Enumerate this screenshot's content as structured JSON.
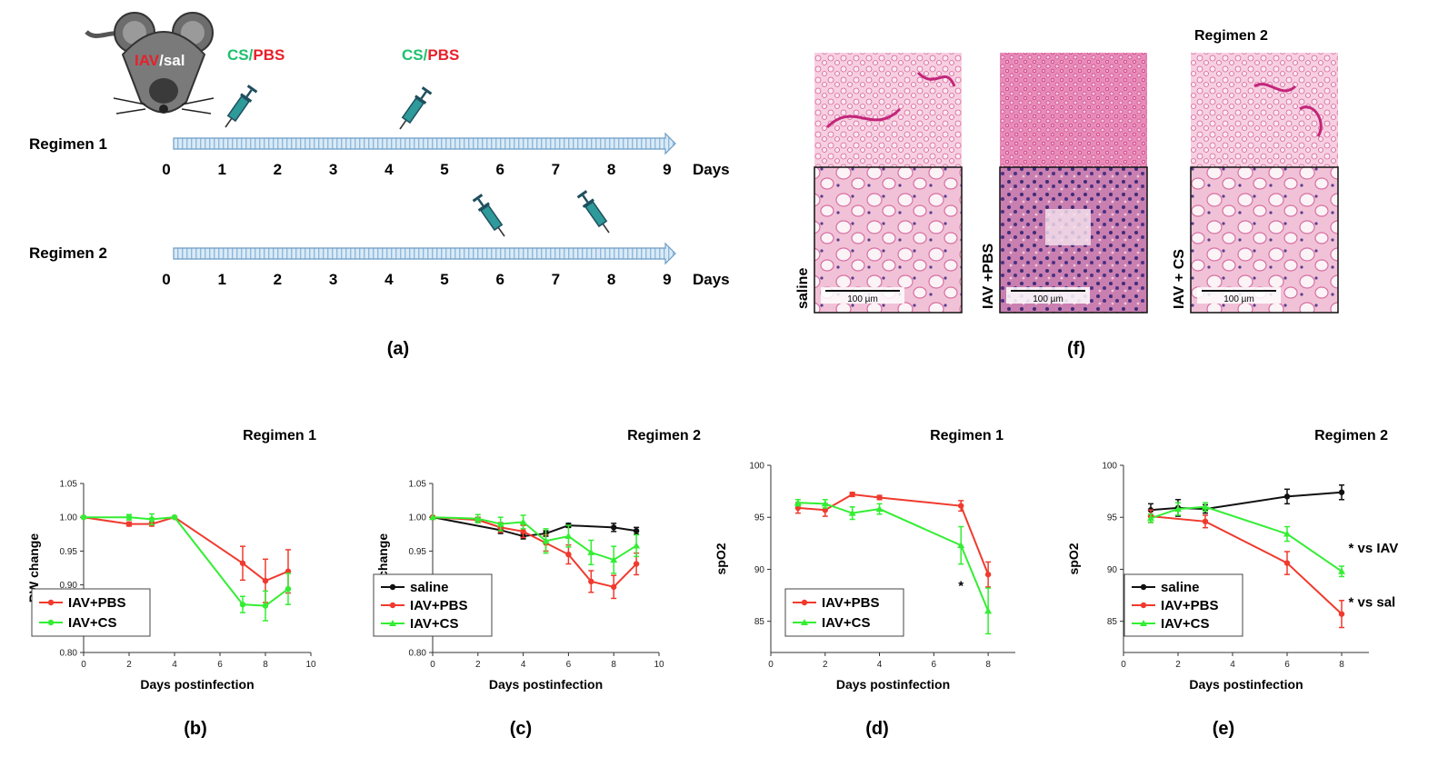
{
  "panel_a": {
    "label": "(a)",
    "mouse_label_iav": "IAV",
    "mouse_label_sep": "/",
    "mouse_label_sal": "sal",
    "inj_label_cs": "CS",
    "inj_label_sep": "/",
    "inj_label_pbs": "PBS",
    "regimen1": "Regimen 1",
    "regimen2": "Regimen 2",
    "days": [
      "0",
      "1",
      "2",
      "3",
      "4",
      "5",
      "6",
      "7",
      "8",
      "9"
    ],
    "days_unit": "Days",
    "colors": {
      "iav": "#e8202a",
      "cs": "#1ec06e",
      "pbs": "#e8202a",
      "arrow": "#cfe3f3"
    }
  },
  "panel_f": {
    "label": "(f)",
    "title": "Regimen 2",
    "samples": [
      "saline",
      "IAV +PBS",
      "IAV + CS"
    ],
    "scale_bar": "100 µm"
  },
  "chart_data": [
    {
      "id": "b",
      "type": "line",
      "panel_label": "(b)",
      "title": "Regimen 1",
      "xlabel": "Days postinfection",
      "ylabel": "BW change",
      "xlim": [
        0,
        10
      ],
      "ylim": [
        0.8,
        1.05
      ],
      "xticks": [
        "0",
        "2",
        "4",
        "6",
        "8",
        "10"
      ],
      "yticks": [
        "0.80",
        "0.85",
        "0.90",
        "0.95",
        "1.00",
        "1.05"
      ],
      "series": [
        {
          "name": "IAV+PBS",
          "color": "#f03a2e",
          "marker": "circle",
          "x": [
            0,
            2,
            3,
            4,
            7,
            8,
            9
          ],
          "y": [
            1.0,
            0.99,
            0.99,
            1.0,
            0.932,
            0.906,
            0.92
          ],
          "err": [
            0,
            0.003,
            0.003,
            0,
            0.025,
            0.032,
            0.032
          ]
        },
        {
          "name": "IAV+CS",
          "color": "#33ee33",
          "marker": "circle",
          "x": [
            0,
            2,
            3,
            4,
            7,
            8,
            9
          ],
          "y": [
            1.0,
            1.0,
            0.997,
            1.0,
            0.871,
            0.869,
            0.894
          ],
          "err": [
            0,
            0.004,
            0.008,
            0,
            0.012,
            0.022,
            0.023
          ]
        }
      ]
    },
    {
      "id": "c",
      "type": "line",
      "panel_label": "(c)",
      "title": "Regimen 2",
      "xlabel": "Days postinfection",
      "ylabel": "BW change",
      "xlim": [
        0,
        10
      ],
      "ylim": [
        0.8,
        1.05
      ],
      "xticks": [
        "0",
        "2",
        "4",
        "6",
        "8",
        "10"
      ],
      "yticks": [
        "0.80",
        "0.85",
        "0.90",
        "0.95",
        "1.00",
        "1.05"
      ],
      "series": [
        {
          "name": "saline",
          "color": "#111111",
          "marker": "circle",
          "x": [
            0,
            3,
            4,
            5,
            6,
            8,
            9
          ],
          "y": [
            1.0,
            0.981,
            0.972,
            0.976,
            0.988,
            0.985,
            0.98
          ],
          "err": [
            0,
            0.005,
            0.004,
            0.004,
            0.003,
            0.006,
            0.005
          ]
        },
        {
          "name": "IAV+PBS",
          "color": "#f03a2e",
          "marker": "circle",
          "x": [
            0,
            2,
            3,
            4,
            5,
            6,
            7,
            8,
            9
          ],
          "y": [
            1.0,
            0.996,
            0.985,
            0.979,
            0.962,
            0.945,
            0.905,
            0.897,
            0.931
          ],
          "err": [
            0,
            0.004,
            0.007,
            0.009,
            0.012,
            0.014,
            0.016,
            0.017,
            0.016
          ]
        },
        {
          "name": "IAV+CS",
          "color": "#33ee33",
          "marker": "triangle",
          "x": [
            0,
            2,
            3,
            4,
            5,
            6,
            7,
            8,
            9
          ],
          "y": [
            1.0,
            0.998,
            0.99,
            0.993,
            0.965,
            0.972,
            0.948,
            0.937,
            0.958
          ],
          "err": [
            0,
            0.006,
            0.01,
            0.01,
            0.018,
            0.016,
            0.018,
            0.02,
            0.016
          ]
        }
      ]
    },
    {
      "id": "d",
      "type": "line",
      "panel_label": "(d)",
      "title": "Regimen 1",
      "xlabel": "Days postinfection",
      "ylabel": "spO2",
      "xlim": [
        0,
        9
      ],
      "ylim": [
        82,
        100
      ],
      "xticks": [
        "0",
        "2",
        "4",
        "6",
        "8"
      ],
      "yticks": [
        "85",
        "90",
        "95",
        "100"
      ],
      "annotations": [
        {
          "text": "*",
          "x": 7,
          "y": 88
        }
      ],
      "series": [
        {
          "name": "IAV+PBS",
          "color": "#f03a2e",
          "marker": "circle",
          "x": [
            1,
            2,
            3,
            4,
            7,
            8
          ],
          "y": [
            95.9,
            95.7,
            97.2,
            96.9,
            96.1,
            89.5
          ],
          "err": [
            0.5,
            0.6,
            0.2,
            0.2,
            0.5,
            1.2
          ]
        },
        {
          "name": "IAV+CS",
          "color": "#33ee33",
          "marker": "triangle",
          "x": [
            1,
            2,
            3,
            4,
            7,
            8
          ],
          "y": [
            96.4,
            96.3,
            95.4,
            95.8,
            92.3,
            86.0
          ],
          "err": [
            0.3,
            0.4,
            0.6,
            0.5,
            1.8,
            2.2
          ]
        }
      ]
    },
    {
      "id": "e",
      "type": "line",
      "panel_label": "(e)",
      "title": "Regimen 2",
      "xlabel": "Days postinfection",
      "ylabel": "spO2",
      "xlim": [
        0,
        9
      ],
      "ylim": [
        82,
        100
      ],
      "xticks": [
        "0",
        "2",
        "4",
        "6",
        "8"
      ],
      "yticks": [
        "85",
        "90",
        "95",
        "100"
      ],
      "annotations": [
        {
          "text": "* vs IAV",
          "x": 8.25,
          "y": 91.6
        },
        {
          "text": "* vs sal",
          "x": 8.25,
          "y": 86.4
        }
      ],
      "series": [
        {
          "name": "saline",
          "color": "#111111",
          "marker": "circle",
          "x": [
            1,
            2,
            3,
            6,
            8
          ],
          "y": [
            95.7,
            95.9,
            95.8,
            97.0,
            97.4
          ],
          "err": [
            0.6,
            0.8,
            0.4,
            0.7,
            0.7
          ]
        },
        {
          "name": "IAV+PBS",
          "color": "#f03a2e",
          "marker": "circle",
          "x": [
            1,
            3,
            6,
            8
          ],
          "y": [
            95.1,
            94.6,
            90.6,
            85.7
          ],
          "err": [
            0.6,
            0.6,
            1.1,
            1.3
          ]
        },
        {
          "name": "IAV+CS",
          "color": "#33ee33",
          "marker": "triangle",
          "x": [
            1,
            2,
            3,
            6,
            8
          ],
          "y": [
            94.9,
            95.8,
            96.0,
            93.4,
            89.8
          ],
          "err": [
            0.4,
            0.6,
            0.4,
            0.7,
            0.5
          ]
        }
      ]
    }
  ]
}
